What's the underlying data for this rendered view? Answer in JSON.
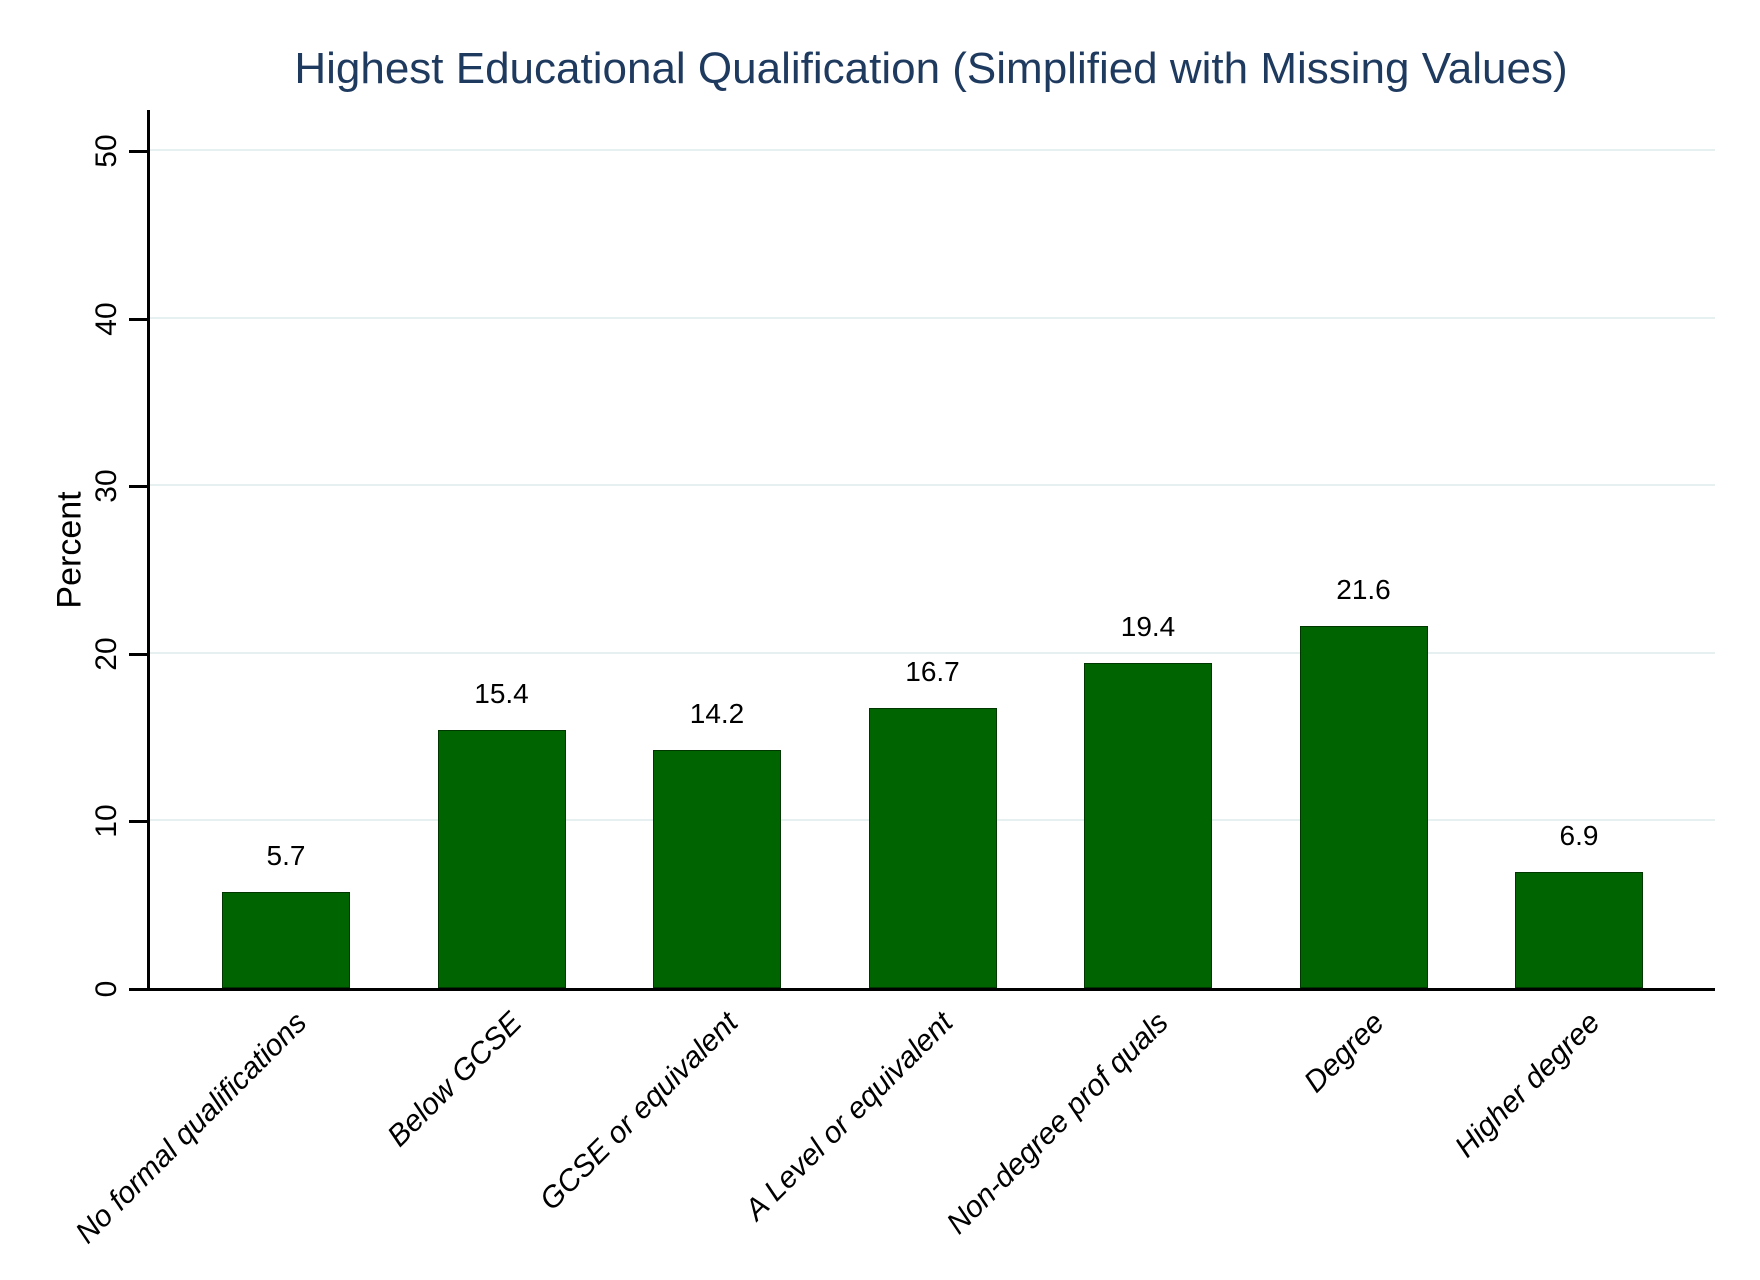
{
  "title": "Highest Educational Qualification (Simplified with Missing Values)",
  "chart_data": {
    "type": "bar",
    "title": "Highest Educational Qualification (Simplified with Missing Values)",
    "categories": [
      "No formal qualifications",
      "Below GCSE",
      "GCSE or equivalent",
      "A Level or equivalent",
      "Non-degree prof quals",
      "Degree",
      "Higher degree"
    ],
    "values": [
      5.7,
      15.4,
      14.2,
      16.7,
      19.4,
      21.6,
      6.9
    ],
    "value_labels": [
      "5.7",
      "15.4",
      "14.2",
      "16.7",
      "19.4",
      "21.6",
      "6.9"
    ],
    "xlabel": "",
    "ylabel": "Percent",
    "yticks": [
      0,
      10,
      20,
      30,
      40,
      50
    ],
    "ylim": [
      0,
      52.4
    ],
    "grid": true,
    "legend": "none",
    "colors": {
      "bar": "#006400",
      "title": "#1f3a5f",
      "gridline": "#e7f0f1",
      "axis": "#000000",
      "background": "#ffffff"
    }
  }
}
